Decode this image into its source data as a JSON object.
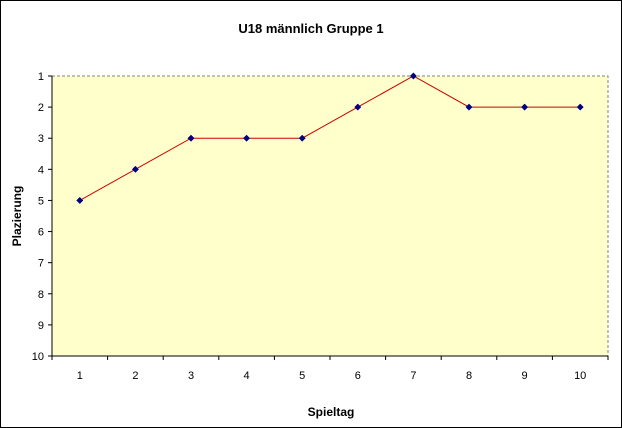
{
  "chart_data": {
    "type": "line",
    "title": "U18 männlich Gruppe 1",
    "xlabel": "Spieltag",
    "ylabel": "Plazierung",
    "x": [
      1,
      2,
      3,
      4,
      5,
      6,
      7,
      8,
      9,
      10
    ],
    "series": [
      {
        "values": [
          5,
          4,
          3,
          3,
          3,
          2,
          1,
          2,
          2,
          2
        ]
      }
    ],
    "ylim": [
      1,
      10
    ],
    "y_reversed": true,
    "y_ticks": [
      1,
      2,
      3,
      4,
      5,
      6,
      7,
      8,
      9,
      10
    ],
    "x_ticks": [
      1,
      2,
      3,
      4,
      5,
      6,
      7,
      8,
      9,
      10
    ],
    "grid": "dashed border only",
    "legend": "none",
    "colors": {
      "plot_background": "#ffffcc",
      "line": "#cc0000",
      "marker": "#000080",
      "plot_border": "#808080"
    }
  }
}
